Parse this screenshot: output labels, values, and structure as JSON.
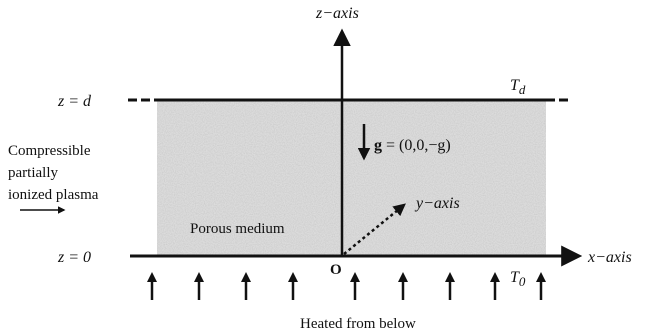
{
  "axes": {
    "z_axis_label": "z−axis",
    "x_axis_label": "x−axis",
    "y_axis_label": "y−axis",
    "origin_label": "O"
  },
  "boundaries": {
    "top_label": "z = d",
    "bottom_label": "z = 0",
    "top_temperature_main": "T",
    "top_temperature_sub": "d",
    "bottom_temperature_main": "T",
    "bottom_temperature_sub": "0"
  },
  "gravity": {
    "symbol": "g",
    "expression": " = (0,0,−g)"
  },
  "medium": {
    "label": "Porous medium"
  },
  "plasma": {
    "lines": [
      "Compressible",
      "partially",
      "ionized plasma"
    ]
  },
  "heating": {
    "label": "Heated from below",
    "arrow_count": 9
  },
  "colors": {
    "ink": "#111111",
    "fill": "#dcdcdc"
  }
}
